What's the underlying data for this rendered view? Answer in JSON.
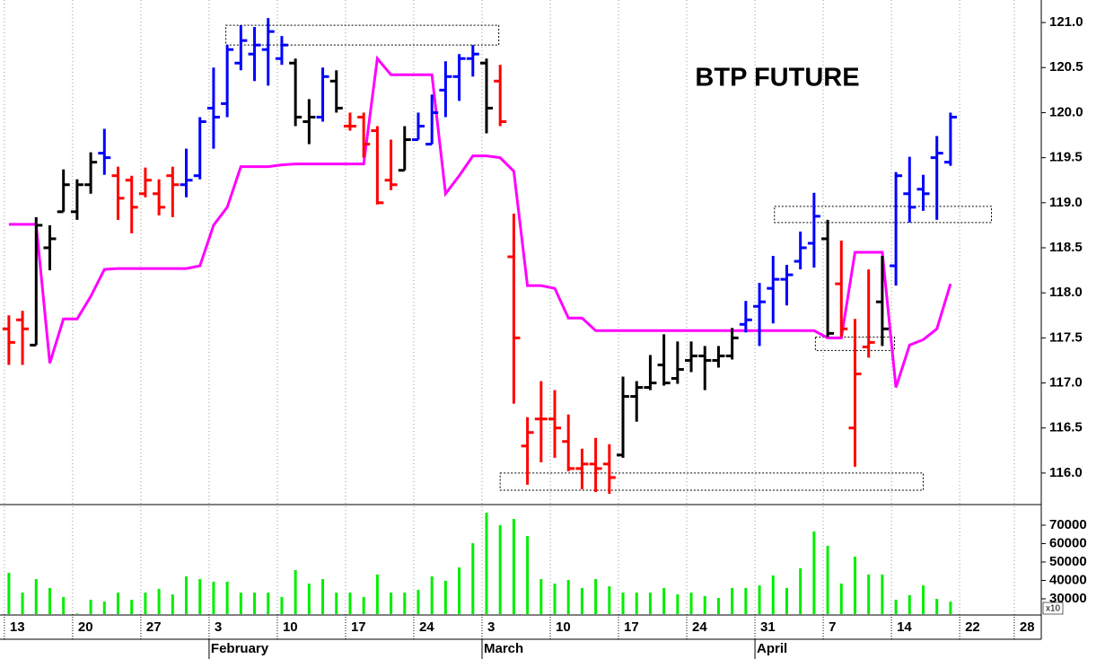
{
  "chart_data": {
    "type": "ohlc",
    "title": "BTP FUTURE",
    "x": [
      0,
      1,
      2,
      3,
      4,
      5,
      6,
      7,
      8,
      9,
      10,
      11,
      12,
      13,
      14,
      15,
      16,
      17,
      18,
      19,
      20,
      21,
      22,
      23,
      24,
      25,
      26,
      27,
      28,
      29,
      30,
      31,
      32,
      33,
      34,
      35,
      36,
      37,
      38,
      39,
      40,
      41,
      42,
      43,
      44,
      45,
      46,
      47,
      48,
      49,
      50,
      51,
      52,
      53,
      54,
      55,
      56,
      57,
      58,
      59,
      60,
      61,
      62,
      63,
      64,
      65,
      66,
      67,
      68,
      69
    ],
    "open": [
      117.6,
      117.7,
      117.42,
      118.5,
      118.9,
      118.9,
      119.2,
      119.55,
      119.3,
      119.25,
      119.1,
      119.1,
      119.3,
      119.2,
      119.3,
      120.05,
      120.1,
      120.55,
      120.65,
      120.7,
      120.6,
      120.55,
      119.9,
      119.95,
      120.35,
      119.85,
      119.95,
      119.8,
      119.25,
      119.36,
      119.7,
      119.65,
      120.25,
      120.4,
      120.6,
      120.55,
      120.35,
      118.4,
      116.3,
      116.6,
      116.6,
      116.35,
      116.05,
      116.1,
      116.1,
      116.2,
      116.85,
      116.95,
      117.2,
      117.05,
      117.25,
      117.3,
      117.25,
      117.3,
      117.65,
      117.85,
      118.05,
      118.15,
      118.35,
      118.55,
      118.6,
      118.1,
      116.5,
      117.4,
      117.9,
      118.3,
      119.1,
      119.15,
      119.5,
      119.45
    ],
    "high": [
      117.75,
      117.8,
      118.84,
      118.75,
      119.37,
      119.26,
      119.56,
      119.82,
      119.4,
      119.3,
      119.39,
      119.26,
      119.4,
      119.6,
      119.95,
      120.5,
      120.75,
      120.97,
      120.95,
      121.05,
      120.85,
      120.6,
      120.15,
      120.5,
      120.47,
      120.0,
      120.0,
      119.85,
      119.7,
      119.85,
      120.0,
      120.2,
      120.57,
      120.65,
      120.75,
      120.6,
      120.53,
      118.88,
      116.62,
      117.02,
      116.92,
      116.65,
      116.27,
      116.39,
      116.32,
      117.07,
      117.02,
      117.31,
      117.54,
      117.46,
      117.46,
      117.41,
      117.41,
      117.61,
      117.91,
      118.11,
      118.41,
      118.31,
      118.68,
      119.11,
      118.81,
      118.58,
      117.71,
      118.26,
      118.41,
      119.34,
      119.51,
      119.31,
      119.74,
      120.0
    ],
    "low": [
      117.2,
      117.2,
      117.42,
      118.25,
      118.9,
      118.81,
      119.1,
      119.31,
      118.81,
      118.66,
      119.06,
      118.86,
      118.84,
      119.06,
      119.26,
      119.6,
      119.95,
      120.47,
      120.35,
      120.3,
      120.53,
      119.85,
      119.65,
      119.9,
      120.0,
      119.8,
      119.5,
      118.98,
      119.14,
      119.36,
      119.7,
      119.65,
      119.95,
      120.13,
      120.4,
      119.77,
      119.85,
      116.77,
      115.87,
      116.12,
      116.17,
      116.02,
      115.82,
      115.79,
      115.77,
      116.17,
      116.57,
      116.92,
      116.97,
      116.99,
      117.12,
      116.92,
      117.17,
      117.26,
      117.56,
      117.41,
      117.66,
      117.86,
      118.26,
      118.28,
      117.51,
      117.51,
      116.07,
      117.28,
      117.41,
      118.08,
      118.78,
      118.91,
      118.81,
      119.41
    ],
    "close": [
      117.45,
      117.6,
      118.75,
      118.6,
      119.2,
      119.2,
      119.45,
      119.5,
      119.05,
      118.95,
      119.25,
      118.95,
      119.2,
      119.25,
      119.9,
      119.95,
      120.7,
      120.8,
      120.75,
      120.9,
      120.75,
      119.95,
      119.95,
      120.4,
      120.05,
      119.85,
      119.65,
      119.0,
      119.2,
      119.7,
      119.85,
      120.0,
      120.4,
      120.6,
      120.65,
      120.05,
      119.9,
      117.5,
      116.45,
      116.6,
      116.5,
      116.05,
      116.1,
      116.05,
      115.95,
      116.85,
      116.95,
      117.0,
      117.0,
      117.15,
      117.3,
      117.25,
      117.3,
      117.5,
      117.7,
      117.9,
      118.15,
      118.2,
      118.5,
      118.85,
      117.55,
      117.6,
      117.1,
      117.45,
      117.6,
      119.3,
      118.95,
      119.1,
      119.55,
      119.95
    ],
    "colors": [
      "#ff0000",
      "#ff0000",
      "#000000",
      "#000000",
      "#000000",
      "#000000",
      "#000000",
      "#0000ff",
      "#ff0000",
      "#ff0000",
      "#ff0000",
      "#ff0000",
      "#ff0000",
      "#0000ff",
      "#0000ff",
      "#0000ff",
      "#0000ff",
      "#0000ff",
      "#0000ff",
      "#0000ff",
      "#0000ff",
      "#000000",
      "#000000",
      "#0000ff",
      "#000000",
      "#ff0000",
      "#ff0000",
      "#ff0000",
      "#ff0000",
      "#000000",
      "#0000ff",
      "#0000ff",
      "#0000ff",
      "#0000ff",
      "#0000ff",
      "#000000",
      "#ff0000",
      "#ff0000",
      "#ff0000",
      "#ff0000",
      "#ff0000",
      "#ff0000",
      "#ff0000",
      "#ff0000",
      "#ff0000",
      "#000000",
      "#000000",
      "#000000",
      "#000000",
      "#000000",
      "#000000",
      "#000000",
      "#000000",
      "#000000",
      "#0000ff",
      "#0000ff",
      "#0000ff",
      "#0000ff",
      "#0000ff",
      "#0000ff",
      "#000000",
      "#ff0000",
      "#ff0000",
      "#ff0000",
      "#000000",
      "#0000ff",
      "#0000ff",
      "#0000ff",
      "#0000ff",
      "#0000ff"
    ],
    "line": {
      "color": "#ff00ff",
      "values": [
        118.76,
        118.76,
        118.76,
        117.22,
        117.71,
        117.71,
        117.96,
        118.26,
        118.27,
        118.27,
        118.27,
        118.27,
        118.27,
        118.27,
        118.3,
        118.75,
        118.95,
        119.4,
        119.4,
        119.4,
        119.42,
        119.43,
        119.43,
        119.43,
        119.43,
        119.43,
        119.43,
        120.6,
        120.42,
        120.42,
        120.42,
        120.42,
        119.1,
        119.3,
        119.52,
        119.52,
        119.5,
        119.35,
        118.08,
        118.08,
        118.05,
        117.72,
        117.72,
        117.58,
        117.58,
        117.58,
        117.58,
        117.58,
        117.58,
        117.58,
        117.58,
        117.58,
        117.58,
        117.58,
        117.58,
        117.58,
        117.58,
        117.58,
        117.58,
        117.58,
        117.5,
        117.5,
        118.45,
        118.45,
        118.45,
        116.95,
        117.42,
        117.48,
        117.6,
        118.1
      ]
    },
    "boxes": [
      {
        "x": [
          15.9,
          35.9
        ],
        "y": [
          120.75,
          120.97
        ]
      },
      {
        "x": [
          36.0,
          67.0
        ],
        "y": [
          115.81,
          116.0
        ]
      },
      {
        "x": [
          56.1,
          72.0
        ],
        "y": [
          118.78,
          118.96
        ]
      },
      {
        "x": [
          59.1,
          64.9
        ],
        "y": [
          117.36,
          117.51
        ]
      }
    ],
    "xlim": [
      -0.65,
      75.65
    ],
    "ylim": [
      115.65,
      121.25
    ],
    "yticks": [
      {
        "value": 116,
        "label": "116.0"
      },
      {
        "value": 116.5,
        "label": "116.5"
      },
      {
        "value": 117,
        "label": "117.0"
      },
      {
        "value": 117.5,
        "label": "117.5"
      },
      {
        "value": 118,
        "label": "118.0"
      },
      {
        "value": 118.5,
        "label": "118.5"
      },
      {
        "value": 119,
        "label": "119.0"
      },
      {
        "value": 119.5,
        "label": "119.5"
      },
      {
        "value": 120,
        "label": "120.0"
      },
      {
        "value": 120.5,
        "label": "120.5"
      },
      {
        "value": 121,
        "label": "121.0"
      }
    ],
    "xticks": [
      {
        "value": 0,
        "label": "13"
      },
      {
        "value": 5,
        "label": "20"
      },
      {
        "value": 10,
        "label": "27"
      },
      {
        "value": 15,
        "label": "3"
      },
      {
        "value": 20,
        "label": "10"
      },
      {
        "value": 25,
        "label": "17"
      },
      {
        "value": 30,
        "label": "24"
      },
      {
        "value": 35,
        "label": "3"
      },
      {
        "value": 40,
        "label": "10"
      },
      {
        "value": 45,
        "label": "17"
      },
      {
        "value": 50,
        "label": "24"
      },
      {
        "value": 55,
        "label": "31"
      },
      {
        "value": 60,
        "label": "7"
      },
      {
        "value": 65,
        "label": "14"
      },
      {
        "value": 70,
        "label": "22"
      },
      {
        "value": 74,
        "label": "28"
      }
    ],
    "month_ticks": [
      {
        "value": 15,
        "label": "February"
      },
      {
        "value": 35,
        "label": "March"
      },
      {
        "value": 55,
        "label": "April"
      }
    ],
    "grid": true,
    "volume": {
      "color": "#00ee00",
      "unit_label": "x10",
      "values": [
        44100,
        33400,
        40700,
        35900,
        31000,
        22000,
        29500,
        28500,
        33400,
        29500,
        33400,
        35400,
        32400,
        42200,
        40700,
        39300,
        39300,
        33400,
        33400,
        33400,
        31000,
        45600,
        38300,
        40700,
        33400,
        33400,
        31000,
        43200,
        33400,
        33400,
        34900,
        42200,
        39800,
        47100,
        60200,
        76800,
        70000,
        73400,
        64100,
        40700,
        38300,
        40200,
        35900,
        40700,
        36800,
        33400,
        33400,
        33400,
        35900,
        32400,
        33400,
        31500,
        30500,
        35900,
        35900,
        37300,
        42700,
        35900,
        46600,
        66600,
        58800,
        38300,
        52900,
        43200,
        43200,
        29500,
        32000,
        37300,
        30000,
        28500
      ],
      "ylim": [
        21700,
        80700
      ],
      "yticks": [
        30000,
        40000,
        50000,
        60000,
        70000
      ]
    }
  }
}
